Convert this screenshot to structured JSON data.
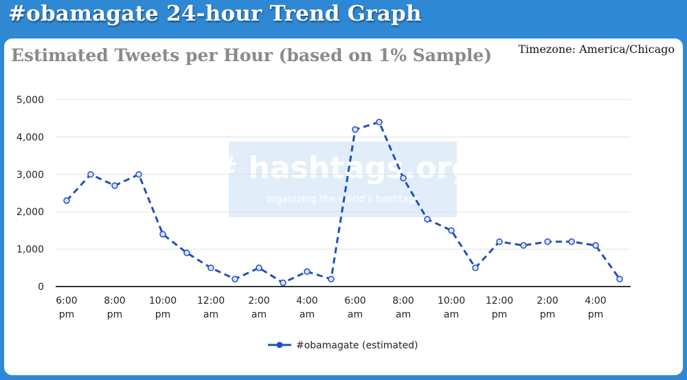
{
  "header": {
    "title": "#obamagate 24-hour Trend Graph"
  },
  "panel": {
    "timezone": "Timezone: America/Chicago"
  },
  "watermark": {
    "logo": "# hashtags.org",
    "tagline": "organizing the world's hashtags"
  },
  "colors": {
    "background": "#2f88d4",
    "series": "#1e4fc0",
    "grid": "#e0e0e0",
    "title": "#8a8a8a"
  },
  "chart_data": {
    "type": "line",
    "title": "Estimated Tweets per Hour (based on 1% Sample)",
    "x_tick_labels": [
      [
        "6:00",
        "pm"
      ],
      [
        "8:00",
        "pm"
      ],
      [
        "10:00",
        "pm"
      ],
      [
        "12:00",
        "am"
      ],
      [
        "2:00",
        "am"
      ],
      [
        "4:00",
        "am"
      ],
      [
        "6:00",
        "am"
      ],
      [
        "8:00",
        "am"
      ],
      [
        "10:00",
        "am"
      ],
      [
        "12:00",
        "pm"
      ],
      [
        "2:00",
        "pm"
      ],
      [
        "4:00",
        "pm"
      ]
    ],
    "y_ticks": [
      0,
      1000,
      2000,
      3000,
      4000,
      5000
    ],
    "y_tick_labels": [
      "0",
      "1,000",
      "2,000",
      "3,000",
      "4,000",
      "5,000"
    ],
    "ylim": [
      0,
      5000
    ],
    "grid": true,
    "legend_position": "bottom",
    "series": [
      {
        "name": "#obamagate (estimated)",
        "style": "dashed",
        "values": [
          2300,
          3000,
          2700,
          3000,
          1400,
          900,
          500,
          200,
          500,
          100,
          400,
          200,
          4200,
          4400,
          2900,
          1800,
          1500,
          500,
          1200,
          1100,
          1200,
          1200,
          1100,
          200
        ]
      }
    ]
  }
}
